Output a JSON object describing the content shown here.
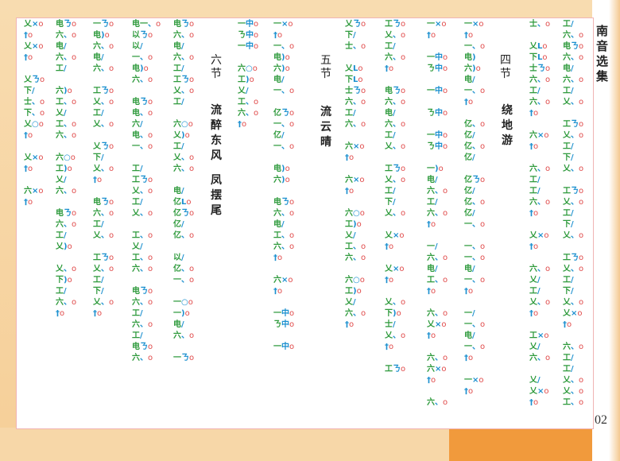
{
  "header": {
    "book_title": "南音选集",
    "page_number": "02"
  },
  "sections": [
    {
      "number": "四节",
      "name": "绕地游"
    },
    {
      "number": "五节",
      "name": "流云晴"
    },
    {
      "number": "六节",
      "name": "流醉东风",
      "name2": "凤摆尾"
    }
  ],
  "colors": {
    "notes": "#2e9a3c",
    "marks": "#1a8fcf",
    "beats": "#e04a4a"
  },
  "notation_columns": [
    {
      "x": "right-1",
      "cells": [
        "工/",
        "六、o",
        "电ㄋo",
        "六、o",
        "电/",
        "六、o",
        "工/",
        "乂、o",
        "",
        "工ㄋo",
        "乂、o",
        "工/",
        "下/",
        "乂、o",
        "",
        "工ㄋo",
        "乂、o",
        "工/",
        "下/",
        "乂、o",
        "",
        "工ㄋo",
        "乂、o",
        "工/",
        "下/",
        "乂、o",
        "乂×o",
        "†o",
        "",
        "六、o",
        "工/",
        "工/",
        "乂、o",
        "乂、o",
        "工、o"
      ]
    },
    {
      "x": "right-2",
      "cells": [
        "士、o",
        "",
        "乂Lo",
        "下Lo",
        "士ㄋo",
        "六、o",
        "工/",
        "六、o",
        "†o",
        "",
        "六×o",
        "†o",
        "",
        "六、o",
        "工/",
        "工/",
        "六、o",
        "†o",
        "",
        "乂×o",
        "†o",
        "",
        "六、o",
        "乂/",
        "工/",
        "乂、o",
        "†o",
        "",
        "工×o",
        "乂/",
        "六、o",
        "",
        "乂/",
        "乂×o",
        "†o"
      ]
    },
    {
      "x": "right-3",
      "cells": [
        "一×o",
        "†o",
        "一、o",
        "电)",
        "六)o",
        "电/",
        "一、o",
        "†o",
        "",
        "亿、o",
        "亿/",
        "亿、o",
        "亿/",
        "",
        "亿ㄋo",
        "亿/",
        "亿、o",
        "亿/",
        "一、o",
        "",
        "一、o",
        "一、o",
        "电/",
        "一、o",
        "†o",
        "",
        "一/",
        "一、o",
        "电/",
        "一、o",
        "†o",
        "",
        "一×o",
        "†o"
      ]
    },
    {
      "x": "right-4",
      "cells": [
        "一×o",
        "†o",
        "",
        "一中o",
        "ㄋ中o",
        "",
        "一中o",
        "",
        "ㄋ中o",
        "",
        "一中o",
        "ㄋ中o",
        "",
        "一)o",
        "电/",
        "六、o",
        "工/",
        "六、o",
        "†o",
        "",
        "一/",
        "六、o",
        "电/",
        "工、o",
        "†o",
        "",
        "六、o",
        "乂×o",
        "†o",
        "",
        "六、o",
        "六×o",
        "†o",
        "",
        "六、o"
      ]
    },
    {
      "x": "right-5",
      "cells": [
        "工ㄋo",
        "乂、o",
        "工/",
        "六、o",
        "†o",
        "",
        "电ㄋo",
        "六、o",
        "电/",
        "六、o",
        "工/",
        "乂、o",
        "",
        "工ㄋo",
        "乂、o",
        "工/",
        "下/",
        "乂、o",
        "",
        "乂×o",
        "†o",
        "",
        "乂×o",
        "†o",
        "",
        "乂、o",
        "下)o",
        "士/",
        "乂、o",
        "†o",
        "",
        "工ㄋo"
      ]
    },
    {
      "x": "right-6",
      "cells": [
        "乂ㄋo",
        "下/",
        "士、o",
        "",
        "乂Lo",
        "下Lo",
        "士ㄋo",
        "六、o",
        "工/",
        "六、o",
        "",
        "六×o",
        "†o",
        "",
        "六×o",
        "†o",
        "",
        "六○o",
        "工)o",
        "乂/",
        "工、o",
        "六、o",
        "",
        "六○o",
        "工)o",
        "乂/",
        "六、o",
        "†o"
      ]
    },
    {
      "x": "left-1",
      "cells": [
        "一×o",
        "†o",
        "一、o",
        "电)o",
        "六)o",
        "电/",
        "一、o",
        "",
        "亿ㄋo",
        "一、o",
        "亿/",
        "一、o",
        "",
        "电)o",
        "六)o",
        "",
        "电ㄋo",
        "六、o",
        "电/",
        "工、o",
        "六、o",
        "†o",
        "",
        "六×o",
        "†o",
        "",
        "一中o",
        "ㄋ中o",
        "",
        "一中o"
      ]
    },
    {
      "x": "left-2",
      "cells": [
        "一中o",
        "ㄋ中o",
        "一中o",
        "",
        "六○o",
        "工)o",
        "乂/",
        "工、o",
        "六、o",
        "†o"
      ]
    },
    {
      "x": "left-3",
      "cells": [
        "电ㄋo",
        "六、o",
        "电/",
        "六、o",
        "工/",
        "工ㄋo",
        "乂、o",
        "工/",
        "",
        "六○o",
        "乂)o",
        "工/",
        "乂、o",
        "六、o",
        "",
        "电/",
        "亿Lo",
        "亿ㄋo",
        "亿/",
        "亿、o",
        "",
        "以/",
        "亿、o",
        "一、o",
        "",
        "一○o",
        "一)o",
        "电/",
        "六、o",
        "",
        "一ㄋo"
      ]
    },
    {
      "x": "left-4",
      "cells": [
        "电一、o",
        "以ㄋo",
        "以/",
        "一、o",
        "电)o",
        "六、o",
        "",
        "电ㄋo",
        "电、o",
        "六/",
        "电、o",
        "一、o",
        "",
        "工/",
        "工ㄋo",
        "乂、o",
        "工/",
        "乂、o",
        "",
        "工、o",
        "乂/",
        "工、o",
        "六、o",
        "",
        "电ㄋo",
        "六、o",
        "工/",
        "六、o",
        "工/",
        "电ㄋo",
        "六、o"
      ]
    },
    {
      "x": "left-5",
      "cells": [
        "一ㄋo",
        "电)o",
        "六、o",
        "电/",
        "六、o",
        "",
        "工ㄋo",
        "乂、o",
        "工/",
        "乂、o",
        "",
        "乂ㄋo",
        "下/",
        "乂、o",
        "†o",
        "",
        "电ㄋo",
        "六、o",
        "工/",
        "乂、o",
        "",
        "工ㄋo",
        "乂、o",
        "工/",
        "下/",
        "乂、o",
        "†o"
      ]
    },
    {
      "x": "left-6",
      "cells": [
        "电ㄋo",
        "六、o",
        "电/",
        "六、o",
        "工/",
        "",
        "六)o",
        "工、o",
        "乂/",
        "工、o",
        "六、o",
        "",
        "六○o",
        "工)o",
        "乂/",
        "六、o",
        "",
        "电ㄋo",
        "六、o",
        "工/",
        "乂)o",
        "",
        "乂、o",
        "下)o",
        "工/",
        "六、o",
        "†o"
      ]
    },
    {
      "x": "left-7",
      "cells": [
        "乂×o",
        "†o",
        "乂×o",
        "†o",
        "",
        "乂ㄋo",
        "下/",
        "士、o",
        "下、o",
        "乂○o",
        "†o",
        "",
        "乂×o",
        "†o",
        "",
        "六×o",
        "†o"
      ]
    }
  ]
}
